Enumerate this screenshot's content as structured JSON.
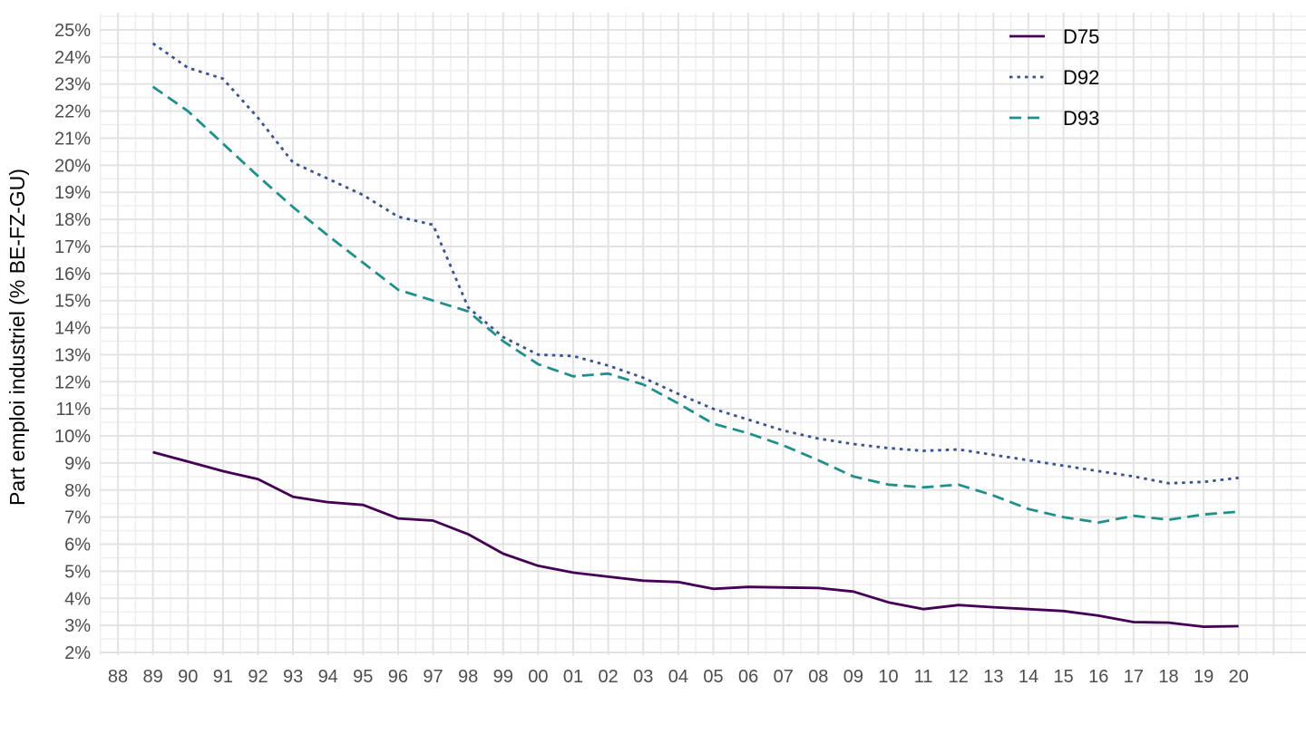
{
  "chart": {
    "y_axis_title": "Part emploi industriel (% BE-FZ-GU)",
    "x_axis_title": "",
    "legend": {
      "position": "top-right",
      "entries": [
        "D75",
        "D92",
        "D93"
      ]
    },
    "colors": {
      "d75_line": "#440154",
      "d92_line": "#3b528b",
      "d93_line": "#21908c",
      "tick_text": "#4d4d4d",
      "axis_title_text": "#000000",
      "legend_text": "#000000",
      "grid_major": "#e3e3e3",
      "grid_minor": "#efefef",
      "background": "#ffffff"
    }
  },
  "chart_data": {
    "type": "line",
    "title": "",
    "xlabel": "",
    "ylabel": "Part emploi industriel (% BE-FZ-GU)",
    "x_tick_labels": [
      "88",
      "89",
      "90",
      "91",
      "92",
      "93",
      "94",
      "95",
      "96",
      "97",
      "98",
      "99",
      "00",
      "01",
      "02",
      "03",
      "04",
      "05",
      "06",
      "07",
      "08",
      "09",
      "10",
      "11",
      "12",
      "13",
      "14",
      "15",
      "16",
      "17",
      "18",
      "19",
      "20"
    ],
    "y_tick_labels": [
      "2%",
      "3%",
      "4%",
      "5%",
      "6%",
      "7%",
      "8%",
      "9%",
      "10%",
      "11%",
      "12%",
      "13%",
      "14%",
      "15%",
      "16%",
      "17%",
      "18%",
      "19%",
      "20%",
      "21%",
      "22%",
      "23%",
      "24%",
      "25%"
    ],
    "y_ticks": [
      2,
      3,
      4,
      5,
      6,
      7,
      8,
      9,
      10,
      11,
      12,
      13,
      14,
      15,
      16,
      17,
      18,
      19,
      20,
      21,
      22,
      23,
      24,
      25
    ],
    "ylim": [
      2,
      25
    ],
    "grid": "major-and-minor",
    "legend_position": "top-right",
    "series_start_tick_index": 1,
    "series": [
      {
        "name": "D75",
        "color": "#440154",
        "style": "solid",
        "values": [
          9.4,
          9.05,
          8.7,
          8.4,
          7.75,
          7.55,
          7.45,
          6.95,
          6.87,
          6.37,
          5.65,
          5.2,
          4.95,
          4.8,
          4.65,
          4.6,
          4.35,
          4.42,
          4.4,
          4.38,
          4.25,
          3.85,
          3.6,
          3.75,
          3.67,
          3.6,
          3.53,
          3.36,
          3.12,
          3.1,
          2.95,
          2.97
        ]
      },
      {
        "name": "D92",
        "color": "#3b528b",
        "style": "dotted",
        "values": [
          24.5,
          23.6,
          23.2,
          21.75,
          20.1,
          19.5,
          18.9,
          18.1,
          17.8,
          14.75,
          13.65,
          13.0,
          12.95,
          12.6,
          12.15,
          11.55,
          11.0,
          10.6,
          10.2,
          9.9,
          9.7,
          9.55,
          9.45,
          9.5,
          9.3,
          9.1,
          8.9,
          8.7,
          8.5,
          8.25,
          8.3,
          8.45
        ]
      },
      {
        "name": "D93",
        "color": "#21908c",
        "style": "dashed",
        "values": [
          22.9,
          22.0,
          20.8,
          19.6,
          18.45,
          17.4,
          16.4,
          15.4,
          15.0,
          14.6,
          13.5,
          12.65,
          12.2,
          12.3,
          11.9,
          11.2,
          10.45,
          10.1,
          9.65,
          9.1,
          8.5,
          8.2,
          8.1,
          8.2,
          7.8,
          7.3,
          7.0,
          6.8,
          7.05,
          6.9,
          7.1,
          7.2
        ]
      }
    ]
  }
}
